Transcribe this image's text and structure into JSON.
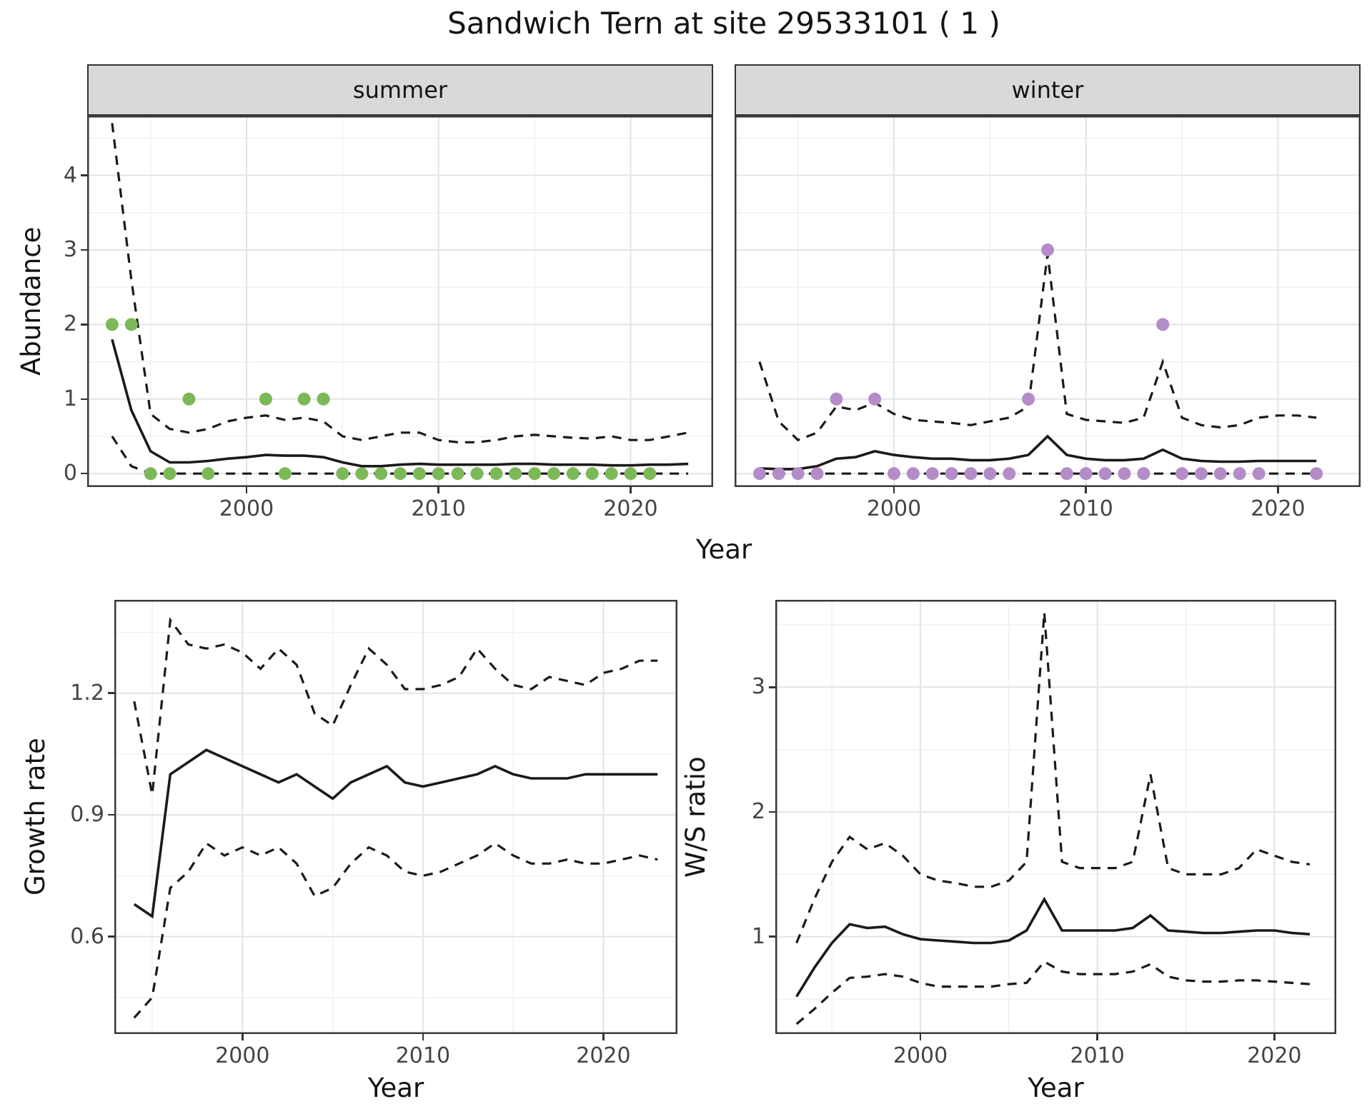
{
  "title": "Sandwich Tern at site 29533101 ( 1 )",
  "colors": {
    "line": "#1a1a1a",
    "summer_points": "#7cb857",
    "winter_points": "#b48cc8",
    "strip_bg": "#d9d9d9",
    "grid_major": "#e4e4e4",
    "grid_minor": "#f1f1f1",
    "panel_border": "#3a3a3a",
    "axis_text": "#444444"
  },
  "chart_data": [
    {
      "type": "line",
      "facet_label": "summer",
      "xlabel": "Year",
      "ylabel": "Abundance",
      "xlim": [
        1991.7,
        2024.3
      ],
      "ylim": [
        -0.18,
        4.8
      ],
      "xticks": [
        2000,
        2010,
        2020
      ],
      "yticks": [
        0,
        1,
        2,
        3,
        4
      ],
      "x": [
        1993,
        1994,
        1995,
        1996,
        1997,
        1998,
        1999,
        2000,
        2001,
        2002,
        2003,
        2004,
        2005,
        2006,
        2007,
        2008,
        2009,
        2010,
        2011,
        2012,
        2013,
        2014,
        2015,
        2016,
        2017,
        2018,
        2019,
        2020,
        2021,
        2022,
        2023
      ],
      "series": [
        {
          "name": "fitted_mean",
          "style": "solid",
          "values": [
            1.8,
            0.85,
            0.3,
            0.15,
            0.15,
            0.17,
            0.2,
            0.22,
            0.25,
            0.24,
            0.24,
            0.22,
            0.15,
            0.1,
            0.1,
            0.12,
            0.13,
            0.12,
            0.12,
            0.12,
            0.12,
            0.13,
            0.13,
            0.12,
            0.12,
            0.12,
            0.11,
            0.11,
            0.12,
            0.12,
            0.13
          ]
        },
        {
          "name": "upper_ci",
          "style": "dashed",
          "values": [
            4.7,
            2.6,
            0.8,
            0.6,
            0.55,
            0.6,
            0.7,
            0.75,
            0.78,
            0.72,
            0.75,
            0.7,
            0.5,
            0.45,
            0.5,
            0.55,
            0.55,
            0.45,
            0.42,
            0.42,
            0.45,
            0.5,
            0.52,
            0.5,
            0.48,
            0.47,
            0.5,
            0.45,
            0.45,
            0.5,
            0.55
          ]
        },
        {
          "name": "lower_ci",
          "style": "dashed",
          "values": [
            0.5,
            0.1,
            0,
            0,
            0,
            0,
            0,
            0,
            0,
            0,
            0,
            0,
            0,
            0,
            0,
            0,
            0,
            0,
            0,
            0,
            0,
            0,
            0,
            0,
            0,
            0,
            0,
            0,
            0,
            0,
            0
          ]
        }
      ],
      "points": {
        "name": "observed_counts",
        "color": "#7cb857",
        "xy": [
          [
            1993,
            2
          ],
          [
            1994,
            2
          ],
          [
            1995,
            0
          ],
          [
            1996,
            0
          ],
          [
            1997,
            1
          ],
          [
            1998,
            0
          ],
          [
            2001,
            1
          ],
          [
            2002,
            0
          ],
          [
            2003,
            1
          ],
          [
            2004,
            1
          ],
          [
            2005,
            0
          ],
          [
            2006,
            0
          ],
          [
            2007,
            0
          ],
          [
            2008,
            0
          ],
          [
            2009,
            0
          ],
          [
            2010,
            0
          ],
          [
            2011,
            0
          ],
          [
            2012,
            0
          ],
          [
            2013,
            0
          ],
          [
            2014,
            0
          ],
          [
            2015,
            0
          ],
          [
            2016,
            0
          ],
          [
            2017,
            0
          ],
          [
            2018,
            0
          ],
          [
            2019,
            0
          ],
          [
            2020,
            0
          ],
          [
            2021,
            0
          ]
        ]
      }
    },
    {
      "type": "line",
      "facet_label": "winter",
      "xlabel": "Year",
      "ylabel": "Abundance",
      "xlim": [
        1991.7,
        2024.3
      ],
      "ylim": [
        -0.18,
        4.8
      ],
      "xticks": [
        2000,
        2010,
        2020
      ],
      "yticks": [
        0,
        1,
        2,
        3,
        4
      ],
      "x": [
        1993,
        1994,
        1995,
        1996,
        1997,
        1998,
        1999,
        2000,
        2001,
        2002,
        2003,
        2004,
        2005,
        2006,
        2007,
        2008,
        2009,
        2010,
        2011,
        2012,
        2013,
        2014,
        2015,
        2016,
        2017,
        2018,
        2019,
        2020,
        2021,
        2022
      ],
      "series": [
        {
          "name": "fitted_mean",
          "style": "solid",
          "values": [
            0.07,
            0.06,
            0.06,
            0.1,
            0.2,
            0.22,
            0.3,
            0.25,
            0.22,
            0.2,
            0.2,
            0.18,
            0.18,
            0.2,
            0.25,
            0.5,
            0.25,
            0.2,
            0.18,
            0.18,
            0.2,
            0.32,
            0.2,
            0.17,
            0.16,
            0.16,
            0.17,
            0.17,
            0.17,
            0.17
          ]
        },
        {
          "name": "upper_ci",
          "style": "dashed",
          "values": [
            1.5,
            0.7,
            0.45,
            0.55,
            0.9,
            0.85,
            0.95,
            0.8,
            0.72,
            0.7,
            0.68,
            0.65,
            0.7,
            0.75,
            0.9,
            2.95,
            0.8,
            0.72,
            0.7,
            0.68,
            0.75,
            1.5,
            0.75,
            0.65,
            0.62,
            0.65,
            0.75,
            0.78,
            0.78,
            0.75
          ]
        },
        {
          "name": "lower_ci",
          "style": "dashed",
          "values": [
            0,
            0,
            0,
            0,
            0,
            0,
            0,
            0,
            0,
            0,
            0,
            0,
            0,
            0,
            0,
            0,
            0,
            0,
            0,
            0,
            0,
            0,
            0,
            0,
            0,
            0,
            0,
            0,
            0,
            0
          ]
        }
      ],
      "points": {
        "name": "observed_counts",
        "color": "#b48cc8",
        "xy": [
          [
            1993,
            0
          ],
          [
            1994,
            0
          ],
          [
            1995,
            0
          ],
          [
            1996,
            0
          ],
          [
            1997,
            1
          ],
          [
            1999,
            1
          ],
          [
            2000,
            0
          ],
          [
            2001,
            0
          ],
          [
            2002,
            0
          ],
          [
            2003,
            0
          ],
          [
            2004,
            0
          ],
          [
            2005,
            0
          ],
          [
            2006,
            0
          ],
          [
            2007,
            1
          ],
          [
            2008,
            3
          ],
          [
            2009,
            0
          ],
          [
            2010,
            0
          ],
          [
            2011,
            0
          ],
          [
            2012,
            0
          ],
          [
            2013,
            0
          ],
          [
            2014,
            2
          ],
          [
            2015,
            0
          ],
          [
            2016,
            0
          ],
          [
            2017,
            0
          ],
          [
            2018,
            0
          ],
          [
            2019,
            0
          ],
          [
            2022,
            0
          ]
        ]
      }
    },
    {
      "type": "line",
      "facet_label": "",
      "xlabel": "Year",
      "ylabel": "Growth rate",
      "xlim": [
        1992.9,
        2024.1
      ],
      "ylim": [
        0.36,
        1.43
      ],
      "xticks": [
        2000,
        2010,
        2020
      ],
      "yticks": [
        0.6,
        0.9,
        1.2
      ],
      "x": [
        1994,
        1995,
        1996,
        1997,
        1998,
        1999,
        2000,
        2001,
        2002,
        2003,
        2004,
        2005,
        2006,
        2007,
        2008,
        2009,
        2010,
        2011,
        2012,
        2013,
        2014,
        2015,
        2016,
        2017,
        2018,
        2019,
        2020,
        2021,
        2022,
        2023
      ],
      "series": [
        {
          "name": "fitted_mean",
          "style": "solid",
          "values": [
            0.68,
            0.65,
            1.0,
            1.03,
            1.06,
            1.04,
            1.02,
            1.0,
            0.98,
            1.0,
            0.97,
            0.94,
            0.98,
            1.0,
            1.02,
            0.98,
            0.97,
            0.98,
            0.99,
            1.0,
            1.02,
            1.0,
            0.99,
            0.99,
            0.99,
            1.0,
            1.0,
            1.0,
            1.0,
            1.0
          ]
        },
        {
          "name": "upper_ci",
          "style": "dashed",
          "values": [
            1.18,
            0.95,
            1.38,
            1.32,
            1.31,
            1.32,
            1.3,
            1.26,
            1.31,
            1.27,
            1.15,
            1.12,
            1.22,
            1.31,
            1.27,
            1.21,
            1.21,
            1.22,
            1.24,
            1.31,
            1.26,
            1.22,
            1.21,
            1.24,
            1.23,
            1.22,
            1.25,
            1.26,
            1.28,
            1.28
          ]
        },
        {
          "name": "lower_ci",
          "style": "dashed",
          "values": [
            0.4,
            0.45,
            0.72,
            0.76,
            0.83,
            0.8,
            0.82,
            0.8,
            0.82,
            0.78,
            0.7,
            0.72,
            0.78,
            0.82,
            0.8,
            0.76,
            0.75,
            0.76,
            0.78,
            0.8,
            0.83,
            0.8,
            0.78,
            0.78,
            0.79,
            0.78,
            0.78,
            0.79,
            0.8,
            0.79
          ]
        }
      ]
    },
    {
      "type": "line",
      "facet_label": "",
      "xlabel": "Year",
      "ylabel": "W/S ratio",
      "xlim": [
        1991.8,
        2023.5
      ],
      "ylim": [
        0.22,
        3.7
      ],
      "xticks": [
        2000,
        2010,
        2020
      ],
      "yticks": [
        1,
        2,
        3
      ],
      "x": [
        1993,
        1994,
        1995,
        1996,
        1997,
        1998,
        1999,
        2000,
        2001,
        2002,
        2003,
        2004,
        2005,
        2006,
        2007,
        2008,
        2009,
        2010,
        2011,
        2012,
        2013,
        2014,
        2015,
        2016,
        2017,
        2018,
        2019,
        2020,
        2021,
        2022
      ],
      "series": [
        {
          "name": "fitted_mean",
          "style": "solid",
          "values": [
            0.52,
            0.75,
            0.95,
            1.1,
            1.07,
            1.08,
            1.02,
            0.98,
            0.97,
            0.96,
            0.95,
            0.95,
            0.97,
            1.05,
            1.3,
            1.05,
            1.05,
            1.05,
            1.05,
            1.07,
            1.17,
            1.05,
            1.04,
            1.03,
            1.03,
            1.04,
            1.05,
            1.05,
            1.03,
            1.02
          ]
        },
        {
          "name": "upper_ci",
          "style": "dashed",
          "values": [
            0.95,
            1.3,
            1.6,
            1.8,
            1.7,
            1.75,
            1.65,
            1.5,
            1.45,
            1.43,
            1.4,
            1.4,
            1.45,
            1.6,
            3.6,
            1.6,
            1.55,
            1.55,
            1.55,
            1.6,
            2.3,
            1.55,
            1.5,
            1.5,
            1.5,
            1.55,
            1.7,
            1.65,
            1.6,
            1.58
          ]
        },
        {
          "name": "lower_ci",
          "style": "dashed",
          "values": [
            0.3,
            0.42,
            0.55,
            0.67,
            0.68,
            0.7,
            0.68,
            0.63,
            0.6,
            0.6,
            0.6,
            0.6,
            0.62,
            0.63,
            0.8,
            0.72,
            0.7,
            0.7,
            0.7,
            0.72,
            0.78,
            0.68,
            0.65,
            0.64,
            0.64,
            0.65,
            0.65,
            0.64,
            0.63,
            0.62
          ]
        }
      ]
    }
  ]
}
